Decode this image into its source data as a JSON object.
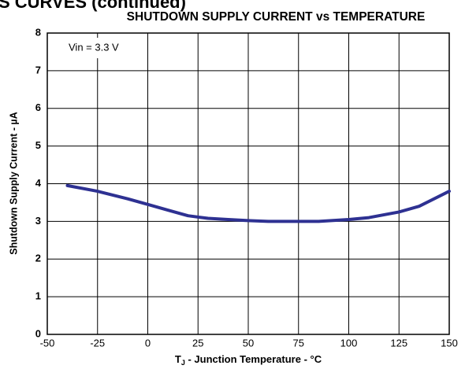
{
  "header": "S CURVES (continued)",
  "chart_data": {
    "type": "line",
    "title": "SHUTDOWN SUPPLY CURRENT vs TEMPERATURE",
    "ylabel": "Shutdown Supply Current - µA",
    "xlabel": {
      "main": "T",
      "sub": "J",
      "rest": " - Junction Temperature - °C"
    },
    "annotation": "Vin = 3.3 V",
    "x": [
      -40,
      -25,
      -10,
      0,
      10,
      20,
      30,
      40,
      50,
      60,
      70,
      85,
      100,
      110,
      125,
      135,
      150
    ],
    "series": [
      {
        "color": "#2e3192",
        "values": [
          3.95,
          3.8,
          3.6,
          3.45,
          3.3,
          3.15,
          3.08,
          3.05,
          3.02,
          3.0,
          3.0,
          3.0,
          3.05,
          3.1,
          3.25,
          3.4,
          3.8
        ]
      }
    ],
    "xlim": [
      -50,
      150
    ],
    "xticks": [
      -50,
      -25,
      0,
      25,
      50,
      75,
      100,
      125,
      150
    ],
    "ylim": [
      0,
      8
    ],
    "yticks": [
      0,
      1,
      2,
      3,
      4,
      5,
      6,
      7,
      8
    ],
    "grid": true
  }
}
